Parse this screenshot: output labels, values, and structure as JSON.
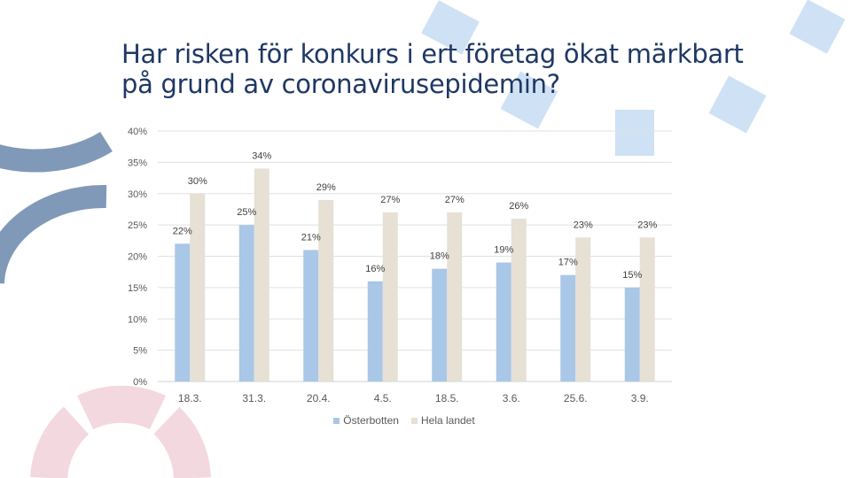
{
  "title_lines": [
    "Har risken för konkurs i ert företag ökat märkbart",
    "på grund av coronavirusepidemin?"
  ],
  "colors": {
    "title": "#1f3864",
    "series_osterbotten": "#a9c7e6",
    "series_hela_landet": "#e6e0d5",
    "deco_arc": "#8199b8",
    "deco_square": "#cfe1f4",
    "deco_ring": "#f4d8df"
  },
  "chart_data": {
    "type": "bar",
    "categories": [
      "18.3.",
      "31.3.",
      "20.4.",
      "4.5.",
      "18.5.",
      "3.6.",
      "25.6.",
      "3.9."
    ],
    "series": [
      {
        "name": "Österbotten",
        "values": [
          22,
          25,
          21,
          16,
          18,
          19,
          17,
          15
        ],
        "labels": [
          "22%",
          "25%",
          "21%",
          "16%",
          "18%",
          "19%",
          "17%",
          "15%"
        ]
      },
      {
        "name": "Hela landet",
        "values": [
          30,
          34,
          29,
          27,
          27,
          26,
          23,
          23
        ],
        "labels": [
          "30%",
          "34%",
          "29%",
          "27%",
          "27%",
          "26%",
          "23%",
          "23%"
        ]
      }
    ],
    "y_ticks": [
      "0%",
      "5%",
      "10%",
      "15%",
      "20%",
      "25%",
      "30%",
      "35%",
      "40%"
    ],
    "ylim": [
      0,
      40
    ],
    "grid": true,
    "legend_position": "bottom"
  }
}
